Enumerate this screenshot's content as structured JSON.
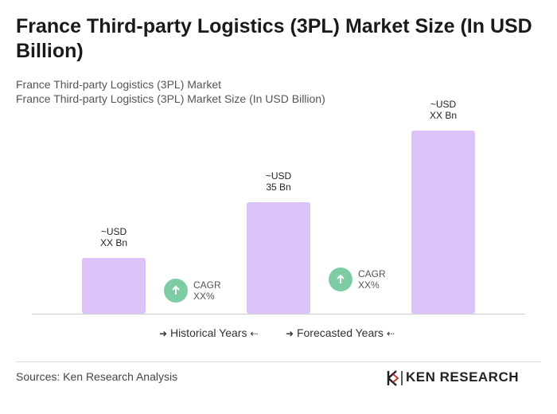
{
  "title": "France Third-party Logistics (3PL) Market Size (In USD Billion)",
  "chart_data": {
    "type": "bar",
    "subtitle": [
      "France Third-party Logistics (3PL) Market",
      "France Third-party Logistics (3PL) Market Size (In USD Billion)"
    ],
    "values": [
      17.5,
      35,
      57.5
    ],
    "value_labels": [
      "~USD\nXX Bn",
      "~USD\n35 Bn",
      "~USD\nXX Bn"
    ],
    "color": "#dcc3f7",
    "ylim": [
      0,
      57.5
    ],
    "annotations": [
      "CAGR\nXX%",
      "CAGR\nXX%"
    ],
    "annotation_color": "#7dcca3",
    "legend": [
      "Historical Years",
      "Forecasted Years"
    ]
  },
  "footer": {
    "source": "Sources: Ken Research Analysis",
    "logo": "KEN RESEARCH"
  }
}
